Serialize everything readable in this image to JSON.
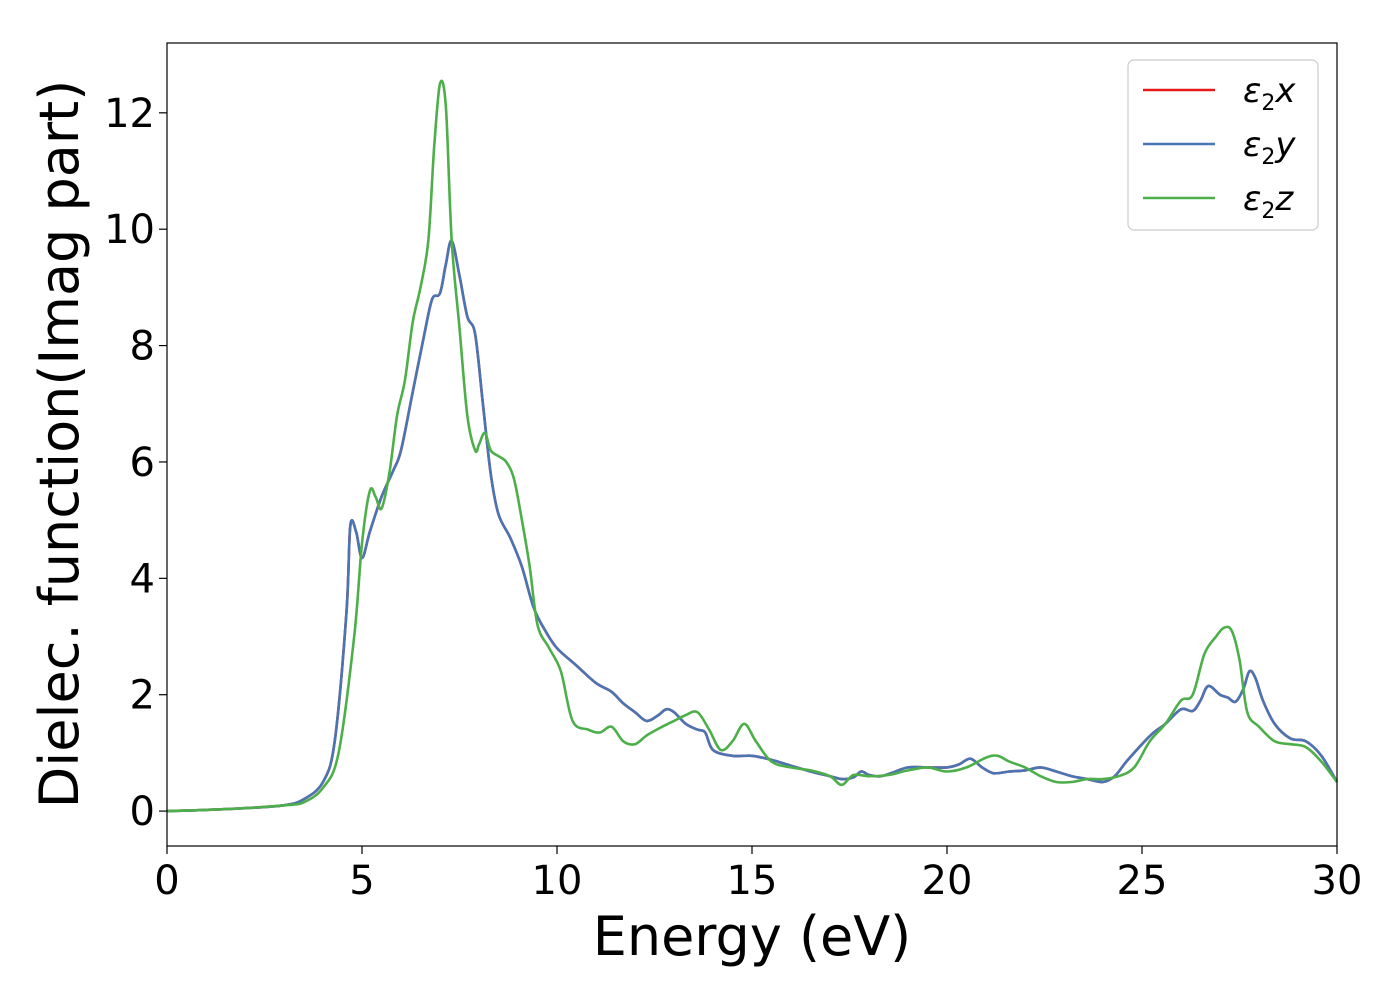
{
  "chart_data": {
    "type": "line",
    "title": "",
    "xlabel": "Energy (eV)",
    "ylabel": "Dielec. function(Imag part)",
    "xlim": [
      0,
      30
    ],
    "ylim": [
      -0.6,
      13.2
    ],
    "xticks": [
      0,
      5,
      10,
      15,
      20,
      25,
      30
    ],
    "yticks": [
      0,
      2,
      4,
      6,
      8,
      10,
      12
    ],
    "grid": false,
    "legend_position": "top-right",
    "series": [
      {
        "name": "ε₂x",
        "legend_symbol": "ε",
        "legend_sub": "2",
        "legend_suffix": "x",
        "color": "#e41a1c",
        "x": [
          0,
          1,
          2,
          3,
          3.5,
          4,
          4.3,
          4.6,
          4.7,
          4.85,
          5.0,
          5.2,
          5.5,
          5.8,
          6.0,
          6.3,
          6.6,
          6.8,
          7.0,
          7.15,
          7.3,
          7.5,
          7.7,
          7.9,
          8.1,
          8.3,
          8.5,
          8.8,
          9.1,
          9.4,
          9.7,
          10.0,
          10.5,
          11.0,
          11.4,
          11.7,
          12.0,
          12.3,
          12.6,
          12.8,
          13.0,
          13.3,
          13.6,
          13.8,
          14.0,
          14.5,
          15.0,
          15.5,
          16.0,
          16.5,
          17.0,
          17.3,
          17.6,
          17.8,
          18.0,
          18.3,
          18.6,
          19.0,
          19.5,
          20.0,
          20.3,
          20.6,
          20.9,
          21.2,
          21.6,
          22.0,
          22.4,
          22.8,
          23.2,
          23.6,
          24.0,
          24.3,
          24.6,
          25.0,
          25.3,
          25.6,
          26.0,
          26.3,
          26.5,
          26.7,
          27.0,
          27.2,
          27.4,
          27.6,
          27.75,
          27.9,
          28.1,
          28.4,
          28.8,
          29.2,
          29.6,
          30.0
        ],
        "y": [
          0,
          0.02,
          0.05,
          0.1,
          0.2,
          0.5,
          1.2,
          3.4,
          4.9,
          4.8,
          4.35,
          4.8,
          5.4,
          5.85,
          6.2,
          7.2,
          8.2,
          8.8,
          8.9,
          9.4,
          9.8,
          9.2,
          8.5,
          8.2,
          7.0,
          5.8,
          5.1,
          4.7,
          4.2,
          3.5,
          3.1,
          2.8,
          2.5,
          2.2,
          2.05,
          1.85,
          1.7,
          1.55,
          1.65,
          1.75,
          1.7,
          1.5,
          1.4,
          1.35,
          1.05,
          0.95,
          0.95,
          0.88,
          0.78,
          0.68,
          0.6,
          0.55,
          0.58,
          0.68,
          0.62,
          0.6,
          0.66,
          0.75,
          0.75,
          0.75,
          0.8,
          0.9,
          0.75,
          0.65,
          0.68,
          0.7,
          0.75,
          0.68,
          0.6,
          0.55,
          0.5,
          0.6,
          0.85,
          1.15,
          1.35,
          1.5,
          1.75,
          1.72,
          1.9,
          2.15,
          2.0,
          1.95,
          1.88,
          2.1,
          2.4,
          2.3,
          1.9,
          1.5,
          1.25,
          1.2,
          0.95,
          0.5
        ]
      },
      {
        "name": "ε₂y",
        "legend_symbol": "ε",
        "legend_sub": "2",
        "legend_suffix": "y",
        "color": "#4a75b5",
        "x": [
          0,
          1,
          2,
          3,
          3.5,
          4,
          4.3,
          4.6,
          4.7,
          4.85,
          5.0,
          5.2,
          5.5,
          5.8,
          6.0,
          6.3,
          6.6,
          6.8,
          7.0,
          7.15,
          7.3,
          7.5,
          7.7,
          7.9,
          8.1,
          8.3,
          8.5,
          8.8,
          9.1,
          9.4,
          9.7,
          10.0,
          10.5,
          11.0,
          11.4,
          11.7,
          12.0,
          12.3,
          12.6,
          12.8,
          13.0,
          13.3,
          13.6,
          13.8,
          14.0,
          14.5,
          15.0,
          15.5,
          16.0,
          16.5,
          17.0,
          17.3,
          17.6,
          17.8,
          18.0,
          18.3,
          18.6,
          19.0,
          19.5,
          20.0,
          20.3,
          20.6,
          20.9,
          21.2,
          21.6,
          22.0,
          22.4,
          22.8,
          23.2,
          23.6,
          24.0,
          24.3,
          24.6,
          25.0,
          25.3,
          25.6,
          26.0,
          26.3,
          26.5,
          26.7,
          27.0,
          27.2,
          27.4,
          27.6,
          27.75,
          27.9,
          28.1,
          28.4,
          28.8,
          29.2,
          29.6,
          30.0
        ],
        "y": [
          0,
          0.02,
          0.05,
          0.1,
          0.2,
          0.5,
          1.2,
          3.4,
          4.9,
          4.8,
          4.35,
          4.8,
          5.4,
          5.85,
          6.2,
          7.2,
          8.2,
          8.8,
          8.9,
          9.4,
          9.8,
          9.2,
          8.5,
          8.2,
          7.0,
          5.8,
          5.1,
          4.7,
          4.2,
          3.5,
          3.1,
          2.8,
          2.5,
          2.2,
          2.05,
          1.85,
          1.7,
          1.55,
          1.65,
          1.75,
          1.7,
          1.5,
          1.4,
          1.35,
          1.05,
          0.95,
          0.95,
          0.88,
          0.78,
          0.68,
          0.6,
          0.55,
          0.58,
          0.68,
          0.62,
          0.6,
          0.66,
          0.75,
          0.75,
          0.75,
          0.8,
          0.9,
          0.75,
          0.65,
          0.68,
          0.7,
          0.75,
          0.68,
          0.6,
          0.55,
          0.5,
          0.6,
          0.85,
          1.15,
          1.35,
          1.5,
          1.75,
          1.72,
          1.9,
          2.15,
          2.0,
          1.95,
          1.88,
          2.1,
          2.4,
          2.3,
          1.9,
          1.5,
          1.25,
          1.2,
          0.95,
          0.5
        ]
      },
      {
        "name": "ε₂z",
        "legend_symbol": "ε",
        "legend_sub": "2",
        "legend_suffix": "z",
        "color": "#4daf4a",
        "x": [
          0,
          1,
          2,
          3,
          3.5,
          4,
          4.4,
          4.8,
          5.0,
          5.2,
          5.35,
          5.5,
          5.7,
          5.9,
          6.1,
          6.3,
          6.5,
          6.7,
          6.85,
          7.0,
          7.15,
          7.3,
          7.5,
          7.7,
          7.9,
          8.0,
          8.15,
          8.3,
          8.5,
          8.7,
          8.9,
          9.1,
          9.3,
          9.5,
          9.8,
          10.1,
          10.4,
          10.8,
          11.1,
          11.4,
          11.7,
          12.0,
          12.3,
          12.7,
          13.0,
          13.3,
          13.6,
          13.9,
          14.2,
          14.5,
          14.8,
          15.1,
          15.5,
          16.0,
          16.5,
          17.0,
          17.3,
          17.6,
          18.0,
          18.5,
          19.0,
          19.5,
          20.0,
          20.5,
          21.0,
          21.3,
          21.6,
          22.0,
          22.4,
          22.8,
          23.2,
          23.6,
          24.0,
          24.4,
          24.8,
          25.2,
          25.6,
          26.0,
          26.3,
          26.6,
          26.9,
          27.1,
          27.3,
          27.5,
          27.7,
          28.0,
          28.4,
          28.8,
          29.2,
          29.6,
          30.0
        ],
        "y": [
          0,
          0.02,
          0.05,
          0.1,
          0.15,
          0.4,
          1.0,
          3.0,
          4.6,
          5.5,
          5.4,
          5.2,
          5.8,
          6.8,
          7.4,
          8.4,
          9.0,
          9.8,
          11.4,
          12.5,
          12.1,
          9.8,
          8.3,
          6.8,
          6.2,
          6.3,
          6.5,
          6.2,
          6.1,
          6.0,
          5.7,
          5.0,
          4.2,
          3.2,
          2.8,
          2.4,
          1.55,
          1.4,
          1.35,
          1.45,
          1.2,
          1.15,
          1.3,
          1.45,
          1.55,
          1.65,
          1.7,
          1.4,
          1.05,
          1.2,
          1.5,
          1.2,
          0.85,
          0.75,
          0.7,
          0.6,
          0.45,
          0.62,
          0.6,
          0.62,
          0.7,
          0.75,
          0.68,
          0.75,
          0.92,
          0.95,
          0.85,
          0.75,
          0.6,
          0.5,
          0.5,
          0.55,
          0.55,
          0.6,
          0.75,
          1.2,
          1.5,
          1.9,
          2.0,
          2.7,
          3.0,
          3.15,
          3.1,
          2.6,
          1.7,
          1.45,
          1.2,
          1.15,
          1.1,
          0.85,
          0.5
        ]
      }
    ]
  }
}
